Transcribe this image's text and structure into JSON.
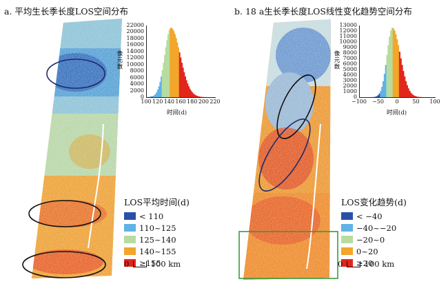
{
  "panels": [
    {
      "title": "a. 平均生长季长度LOS空间分布",
      "histogram": {
        "y_title": "像元数",
        "x_title": "时间(d)",
        "y_ticks": [
          "22000",
          "20000",
          "18000",
          "16000",
          "14000",
          "12000",
          "10000",
          "8000",
          "6000",
          "4000",
          "2000",
          "0"
        ],
        "x_ticks": [
          "100",
          "120",
          "140",
          "160",
          "180",
          "200",
          "220"
        ]
      },
      "legend": {
        "title": "LOS平均时间(d)",
        "items": [
          {
            "label": "< 110",
            "color": "#2a4fa8"
          },
          {
            "label": "110~125",
            "color": "#5fb3e6"
          },
          {
            "label": "125~140",
            "color": "#b6dca0"
          },
          {
            "label": "140~155",
            "color": "#f2a62a"
          },
          {
            "label": "≥155",
            "color": "#e1261c"
          }
        ]
      },
      "scale": {
        "zero": "0",
        "label": "100 km"
      }
    },
    {
      "title": "b. 18 a生长季长度LOS线性变化趋势空间分布",
      "histogram": {
        "y_title": "像元数",
        "x_title": "时间(d)",
        "y_ticks": [
          "13000",
          "12000",
          "11000",
          "10000",
          "9000",
          "8000",
          "7000",
          "6000",
          "5000",
          "4000",
          "3000",
          "2000",
          "1000",
          "0"
        ],
        "x_ticks": [
          "−100",
          "−50",
          "0",
          "50",
          "100"
        ]
      },
      "legend": {
        "title": "LOS变化趋势(d)",
        "items": [
          {
            "label": "< −40",
            "color": "#2a4fa8"
          },
          {
            "label": "−40~−20",
            "color": "#5fb3e6"
          },
          {
            "label": "−20~0",
            "color": "#b6dca0"
          },
          {
            "label": "0~20",
            "color": "#f2a62a"
          },
          {
            "label": "≥20",
            "color": "#e1261c"
          }
        ]
      },
      "scale": {
        "zero": "0",
        "label": "100 km"
      }
    }
  ]
}
